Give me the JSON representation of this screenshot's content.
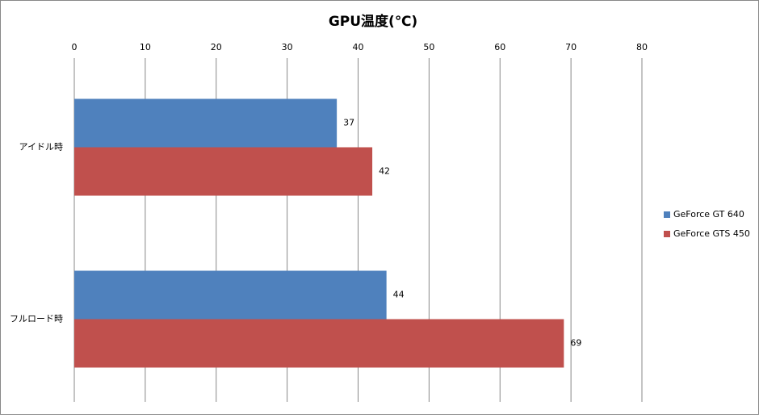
{
  "chart_data": {
    "type": "bar",
    "orientation": "horizontal",
    "title": "GPU温度(℃)",
    "categories": [
      "アイドル時",
      "フルロード時"
    ],
    "series": [
      {
        "name": "GeForce GT 640",
        "color": "#4f81bd",
        "values": [
          37,
          44
        ]
      },
      {
        "name": "GeForce GTS 450",
        "color": "#c0504d",
        "values": [
          42,
          69
        ]
      }
    ],
    "xlim": [
      0,
      80
    ],
    "xticks": [
      0,
      10,
      20,
      30,
      40,
      50,
      60,
      70,
      80
    ],
    "x_axis_position": "top",
    "grid": true,
    "legend": "right"
  }
}
